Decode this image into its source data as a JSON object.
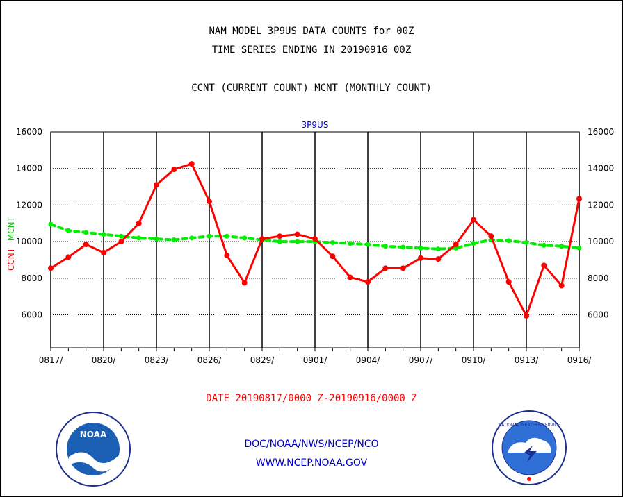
{
  "header": {
    "title_line1": "NAM MODEL 3P9US DATA COUNTS for 00Z",
    "title_line2": "TIME SERIES ENDING IN 20190916 00Z",
    "subtitle": "CCNT (CURRENT COUNT) MCNT (MONTHLY COUNT)"
  },
  "footer": {
    "date_range": "DATE 20190817/0000 Z-20190916/0000 Z",
    "org_line": "DOC/NOAA/NWS/NCEP/NCO",
    "url_line": "WWW.NCEP.NOAA.GOV",
    "noaa_logo_text": "NOAA",
    "nws_logo_text": "NATIONAL WEATHER SERVICE"
  },
  "colors": {
    "ccnt": "#ff0000",
    "mcnt": "#00ee00",
    "panel_label": "#0000cc",
    "date_text": "#ff0000",
    "footer_text": "#0000cc"
  },
  "chart_data": {
    "type": "line",
    "title": "3P9US",
    "ylabel_parts": [
      "CCNT",
      "MCNT"
    ],
    "ylim": [
      4200,
      16000
    ],
    "yticks": [
      "6000",
      "8000",
      "10000",
      "12000",
      "14000",
      "16000"
    ],
    "ytick_values": [
      6000,
      8000,
      10000,
      12000,
      14000,
      16000
    ],
    "x_tick_labels": [
      "0817/",
      "0820/",
      "0823/",
      "0826/",
      "0829/",
      "0901/",
      "0904/",
      "0907/",
      "0910/",
      "0913/",
      "0916/"
    ],
    "x_tick_days": [
      0,
      3,
      6,
      9,
      12,
      15,
      18,
      21,
      24,
      27,
      30
    ],
    "grid": true,
    "series": [
      {
        "name": "CCNT",
        "style": "solid",
        "values": [
          8550,
          9150,
          9850,
          9400,
          10000,
          11000,
          13100,
          13950,
          14250,
          12200,
          9250,
          7750,
          10150,
          10300,
          10400,
          10150,
          9200,
          8050,
          7800,
          8550,
          8550,
          9100,
          9050,
          9850,
          11200,
          10300,
          7800,
          5950,
          8700,
          7600,
          12350
        ]
      },
      {
        "name": "MCNT",
        "style": "dotted",
        "values": [
          10950,
          10600,
          10500,
          10400,
          10300,
          10200,
          10150,
          10100,
          10200,
          10300,
          10300,
          10200,
          10100,
          10000,
          10000,
          10000,
          9950,
          9900,
          9850,
          9750,
          9700,
          9650,
          9600,
          9650,
          9900,
          10100,
          10050,
          9950,
          9800,
          9750,
          9650
        ]
      }
    ]
  }
}
